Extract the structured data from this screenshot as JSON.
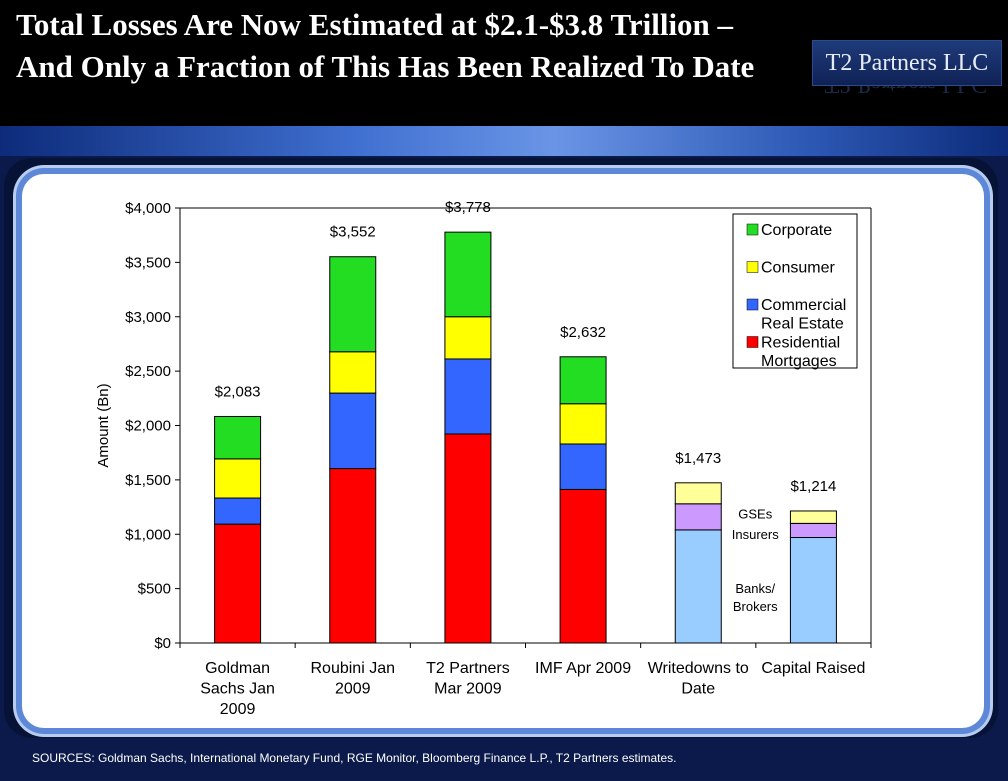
{
  "header": {
    "title": "Total Losses Are Now Estimated at $2.1-$3.8 Trillion – And Only a Fraction of This Has Been Realized To Date",
    "brand": "T2 Partners LLC"
  },
  "footer": {
    "sources": "SOURCES: Goldman Sachs, International Monetary Fund, RGE Monitor, Bloomberg Finance L.P., T2 Partners estimates."
  },
  "colors": {
    "residential": "#ff0000",
    "commercial": "#3366ff",
    "consumer": "#ffff00",
    "corporate": "#22dd22",
    "banks_brokers": "#99ccff",
    "insurers": "#cc99ff",
    "gses": "#ffff99"
  },
  "chart_data": {
    "type": "bar",
    "stacked": true,
    "title": "",
    "ylabel": "Amount (Bn)",
    "xlabel": "",
    "ylim": [
      0,
      4000
    ],
    "yticks": [
      0,
      500,
      1000,
      1500,
      2000,
      2500,
      3000,
      3500,
      4000
    ],
    "ytick_labels": [
      "$0",
      "$500",
      "$1,000",
      "$1,500",
      "$2,000",
      "$2,500",
      "$3,000",
      "$3,500",
      "$4,000"
    ],
    "categories": [
      [
        "Goldman",
        "Sachs Jan",
        "2009"
      ],
      [
        "Roubini Jan",
        "2009"
      ],
      [
        "T2 Partners",
        "Mar 2009"
      ],
      [
        "IMF Apr 2009"
      ],
      [
        "Writedowns to",
        "Date"
      ],
      [
        "Capital Raised"
      ]
    ],
    "totals": [
      2083,
      3552,
      3778,
      2632,
      1473,
      1214
    ],
    "total_labels": [
      "$2,083",
      "$3,552",
      "$3,778",
      "$2,632",
      "$1,473",
      "$1,214"
    ],
    "series": [
      {
        "name": "Residential Mortgages",
        "legend": [
          "Residential",
          "Mortgages"
        ],
        "color_key": "residential",
        "values": [
          1093,
          1604,
          1922,
          1412,
          0,
          0
        ]
      },
      {
        "name": "Commercial Real Estate",
        "legend": [
          "Commercial",
          "Real Estate"
        ],
        "color_key": "commercial",
        "values": [
          240,
          694,
          690,
          418,
          0,
          0
        ]
      },
      {
        "name": "Consumer",
        "legend": [
          "Consumer"
        ],
        "color_key": "consumer",
        "values": [
          360,
          380,
          388,
          370,
          0,
          0
        ]
      },
      {
        "name": "Corporate",
        "legend": [
          "Corporate"
        ],
        "color_key": "corporate",
        "values": [
          390,
          874,
          778,
          432,
          0,
          0
        ]
      },
      {
        "name": "Banks/Brokers",
        "legend": [],
        "color_key": "banks_brokers",
        "values": [
          0,
          0,
          0,
          0,
          1040,
          970
        ]
      },
      {
        "name": "Insurers",
        "legend": [],
        "color_key": "insurers",
        "values": [
          0,
          0,
          0,
          0,
          240,
          130
        ]
      },
      {
        "name": "GSEs",
        "legend": [],
        "color_key": "gses",
        "values": [
          0,
          0,
          0,
          0,
          193,
          114
        ]
      }
    ],
    "legend_series": [
      "Corporate",
      "Consumer",
      "Commercial Real Estate",
      "Residential Mortgages"
    ],
    "legend_position": "top-right",
    "annotations": [
      {
        "lines": [
          "GSEs"
        ],
        "x_category": 4,
        "y": 1145
      },
      {
        "lines": [
          "Insurers"
        ],
        "x_category": 4,
        "y": 955
      },
      {
        "lines": [
          "Banks/",
          "Brokers"
        ],
        "x_category": 4,
        "y": 460
      }
    ]
  }
}
